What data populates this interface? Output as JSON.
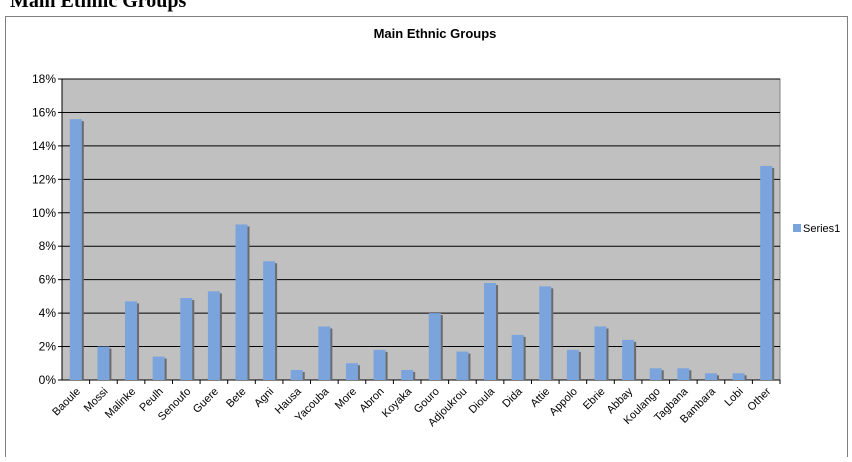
{
  "page_heading": "Main Ethnic Groups",
  "chart_data": {
    "type": "bar",
    "title": "Main Ethnic Groups",
    "xlabel": "",
    "ylabel": "",
    "ylim": [
      0,
      18
    ],
    "yticks": [
      "0%",
      "2%",
      "4%",
      "6%",
      "8%",
      "10%",
      "12%",
      "14%",
      "16%",
      "18%"
    ],
    "categories": [
      "Baoule",
      "Mossi",
      "Malinke",
      "Peulh",
      "Senoufo",
      "Guere",
      "Bete",
      "Agni",
      "Hausa",
      "Yacouba",
      "More",
      "Abron",
      "Koyaka",
      "Gouro",
      "Adjoukrou",
      "Dioula",
      "Dida",
      "Attie",
      "Appolo",
      "Ebrie",
      "Abbay",
      "Koulango",
      "Tagbana",
      "Bambara",
      "Lobi",
      "Other"
    ],
    "series": [
      {
        "name": "Series1",
        "color": "#7ba4dc",
        "values": [
          15.6,
          2.0,
          4.7,
          1.4,
          4.9,
          5.3,
          9.3,
          7.1,
          0.6,
          3.2,
          1.0,
          1.8,
          0.6,
          4.0,
          1.7,
          5.8,
          2.7,
          5.6,
          1.8,
          3.2,
          2.4,
          0.7,
          0.7,
          0.4,
          0.4,
          12.8
        ]
      }
    ],
    "grid": true,
    "plot_background": "#c0c0c0",
    "legend": "right"
  }
}
